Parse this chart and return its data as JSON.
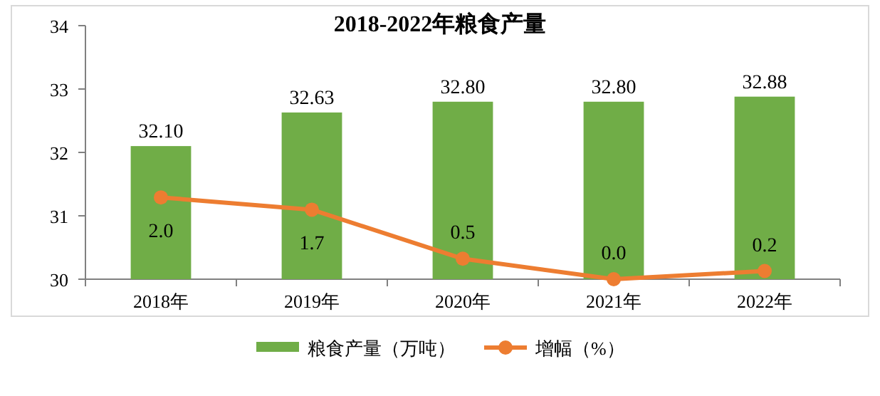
{
  "chart_data": {
    "type": "bar",
    "title": "2018-2022年粮食产量",
    "categories": [
      "2018年",
      "2019年",
      "2020年",
      "2021年",
      "2022年"
    ],
    "series": [
      {
        "name": "粮食产量（万吨）",
        "color": "#70ad47",
        "values": [
          32.1,
          32.63,
          32.8,
          32.8,
          32.88
        ],
        "value_labels": [
          "32.10",
          "32.63",
          "32.80",
          "32.80",
          "32.88"
        ]
      },
      {
        "name": "增幅（%）",
        "type": "line",
        "axis": "y2",
        "color": "#ed7d31",
        "marker": "circle",
        "values": [
          2.0,
          1.7,
          0.5,
          0.0,
          0.2
        ],
        "value_labels": [
          "2.0",
          "1.7",
          "0.5",
          "0.0",
          "0.2"
        ]
      }
    ],
    "ylim": [
      30,
      34
    ],
    "yticks": [
      30,
      31,
      32,
      33,
      34
    ],
    "legend": "bottom",
    "grid": false
  }
}
